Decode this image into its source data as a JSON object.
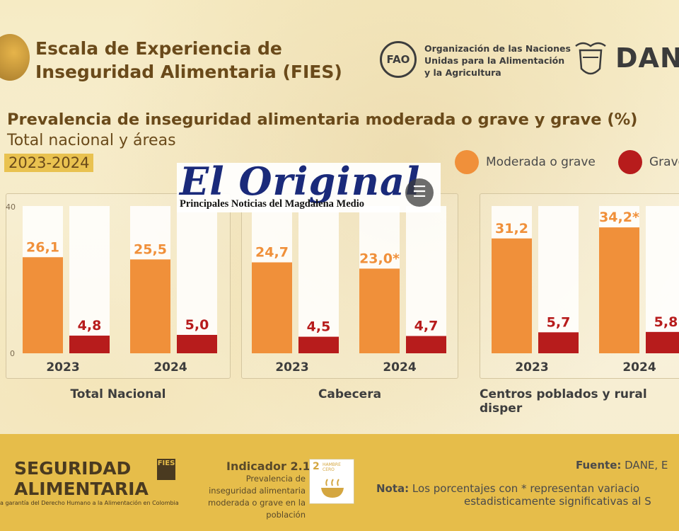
{
  "header": {
    "title_line1": "Escala de Experiencia de",
    "title_line2": "Inseguridad Alimentaria (FIES)",
    "fao_logo_text": "FAO",
    "fao_line1": "Organización de las Naciones",
    "fao_line2": "Unidas para la Alimentación",
    "fao_line3": "y la Agricultura",
    "dane_text": "DANE"
  },
  "chart_data": {
    "type": "bar",
    "title": "Prevalencia de inseguridad alimentaria moderada o grave y grave (%)",
    "subtitle": "Total nacional y áreas",
    "period": "2023-2024",
    "ylim": [
      0,
      40
    ],
    "yticks": [
      "40",
      "0"
    ],
    "legend": [
      {
        "name": "Moderada o grave",
        "color": "#f0903a"
      },
      {
        "name": "Grave",
        "color": "#b71c1c"
      }
    ],
    "groups": [
      {
        "name": "Total Nacional",
        "years": [
          {
            "year": "2023",
            "moderada": 26.1,
            "grave": 4.8,
            "moderada_label": "26,1",
            "grave_label": "4,8"
          },
          {
            "year": "2024",
            "moderada": 25.5,
            "grave": 5.0,
            "moderada_label": "25,5",
            "grave_label": "5,0"
          }
        ]
      },
      {
        "name": "Cabecera",
        "years": [
          {
            "year": "2023",
            "moderada": 24.7,
            "grave": 4.5,
            "moderada_label": "24,7",
            "grave_label": "4,5"
          },
          {
            "year": "2024",
            "moderada": 23.0,
            "grave": 4.7,
            "moderada_label": "23,0*",
            "grave_label": "4,7"
          }
        ]
      },
      {
        "name": "Centros poblados y rural disper",
        "years": [
          {
            "year": "2023",
            "moderada": 31.2,
            "grave": 5.7,
            "moderada_label": "31,2",
            "grave_label": "5,7"
          },
          {
            "year": "2024",
            "moderada": 34.2,
            "grave": 5.8,
            "moderada_label": "34,2*",
            "grave_label": "5,8"
          }
        ]
      }
    ]
  },
  "watermark": {
    "title": "El Original",
    "subtitle": "Principales Noticias del Magdalena Medio",
    "icon": "document-icon"
  },
  "footer": {
    "brand_line1": "SEGURIDAD",
    "brand_line2": "ALIMENTARIA",
    "brand_tag": "FIES",
    "brand_sub": "a garantía del Derecho Humano a la Alimentación en Colombia",
    "indicator_title": "Indicador 2.1.2",
    "indicator_desc": "Prevalencia de inseguridad alimentaria moderada o grave en la población",
    "sdg_number": "2",
    "sdg_text": "HAMBRE CERO",
    "source_label": "Fuente:",
    "source_value": " DANE, E",
    "note_label": "Nota:",
    "note_line1": " Los porcentajes con * representan variacio",
    "note_line2": "estadisticamente significativas al S"
  },
  "colors": {
    "moderada": "#f0903a",
    "grave": "#b71c1c",
    "text_brown": "#6a4a1a"
  }
}
